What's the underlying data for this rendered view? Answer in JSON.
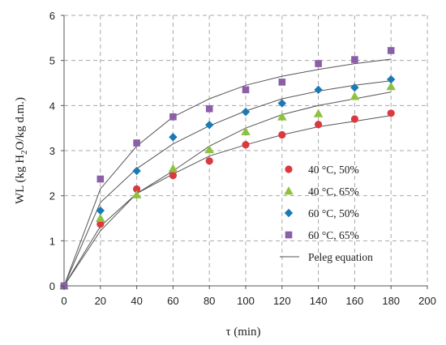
{
  "chart_data": {
    "type": "scatter",
    "xlabel": "τ (min)",
    "ylabel_parts": [
      "WL (kg H",
      "2",
      "O/kg d.m.)"
    ],
    "xlim": [
      0,
      200
    ],
    "ylim": [
      0,
      6
    ],
    "xticks": [
      0,
      20,
      40,
      60,
      80,
      100,
      120,
      140,
      160,
      180,
      200
    ],
    "yticks": [
      0,
      1,
      2,
      3,
      4,
      5,
      6
    ],
    "grid": true,
    "legend_position": "right-inside",
    "x": [
      0,
      20,
      40,
      60,
      80,
      100,
      120,
      140,
      160,
      180
    ],
    "series": [
      {
        "name": "40 °C, 50%",
        "marker": "circle",
        "color": "#d9393f",
        "values": [
          0,
          1.37,
          2.15,
          2.45,
          2.77,
          3.13,
          3.35,
          3.58,
          3.7,
          3.83
        ],
        "fit": [
          0,
          1.22,
          2.05,
          2.48,
          2.88,
          3.13,
          3.35,
          3.53,
          3.65,
          3.78
        ]
      },
      {
        "name": "40 °C, 65%",
        "marker": "triangle",
        "color": "#8fc140",
        "values": [
          0,
          1.5,
          2.02,
          2.6,
          3.02,
          3.42,
          3.75,
          3.82,
          4.2,
          4.42
        ],
        "fit": [
          0,
          1.32,
          2.05,
          2.55,
          3.1,
          3.5,
          3.8,
          4.0,
          4.15,
          4.3
        ]
      },
      {
        "name": "60 °C, 50%",
        "marker": "diamond",
        "color": "#1b79b5",
        "values": [
          0,
          1.67,
          2.55,
          3.3,
          3.57,
          3.86,
          4.05,
          4.35,
          4.4,
          4.58
        ],
        "fit": [
          0,
          1.85,
          2.6,
          3.15,
          3.55,
          3.88,
          4.15,
          4.32,
          4.45,
          4.55
        ]
      },
      {
        "name": "60 °C, 65%",
        "marker": "square",
        "color": "#8b5fa8",
        "values": [
          0,
          2.37,
          3.17,
          3.75,
          3.93,
          4.35,
          4.52,
          4.93,
          5.02,
          5.22
        ],
        "fit": [
          0,
          2.15,
          3.1,
          3.75,
          4.15,
          4.45,
          4.65,
          4.8,
          4.93,
          5.03
        ]
      }
    ],
    "fit_legend": "Peleg equation",
    "fit_color": "#555555"
  }
}
